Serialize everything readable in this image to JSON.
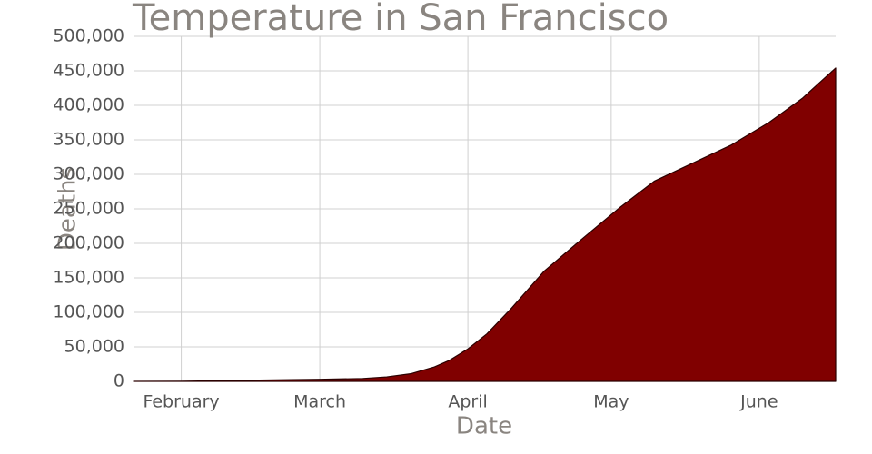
{
  "chart_data": {
    "type": "area",
    "title": "Temperature in San Francisco",
    "x_label": "Date",
    "y_label": "Deaths",
    "color": "#800000",
    "grid": true,
    "x": [
      22,
      32,
      45,
      55,
      61,
      70,
      75,
      80,
      85,
      88,
      92,
      96,
      101,
      108,
      116,
      124,
      131,
      139,
      147,
      155,
      162,
      169
    ],
    "values": [
      17,
      260,
      1500,
      2500,
      3000,
      4200,
      6500,
      11000,
      21000,
      30000,
      47000,
      69000,
      105000,
      160000,
      207000,
      253000,
      290000,
      316000,
      342000,
      375000,
      410000,
      454000
    ],
    "xlim": [
      22,
      169
    ],
    "xticks": [
      {
        "value": 32,
        "label": "February"
      },
      {
        "value": 61,
        "label": "March"
      },
      {
        "value": 92,
        "label": "April"
      },
      {
        "value": 122,
        "label": "May"
      },
      {
        "value": 153,
        "label": "June"
      }
    ],
    "ylim": [
      0,
      500000
    ],
    "yticks": [
      0,
      {
        "value": 50000,
        "label": "50,000"
      },
      {
        "value": 100000,
        "label": "100,000"
      },
      {
        "value": 150000,
        "label": "150,000"
      },
      {
        "value": 200000,
        "label": "200,000"
      },
      {
        "value": 250000,
        "label": "250,000"
      },
      {
        "value": 300000,
        "label": "300,000"
      },
      {
        "value": 350000,
        "label": "350,000"
      },
      {
        "value": 400000,
        "label": "400,000"
      },
      {
        "value": 450000,
        "label": "450,000"
      },
      {
        "value": 500000,
        "label": "500,000"
      }
    ]
  }
}
